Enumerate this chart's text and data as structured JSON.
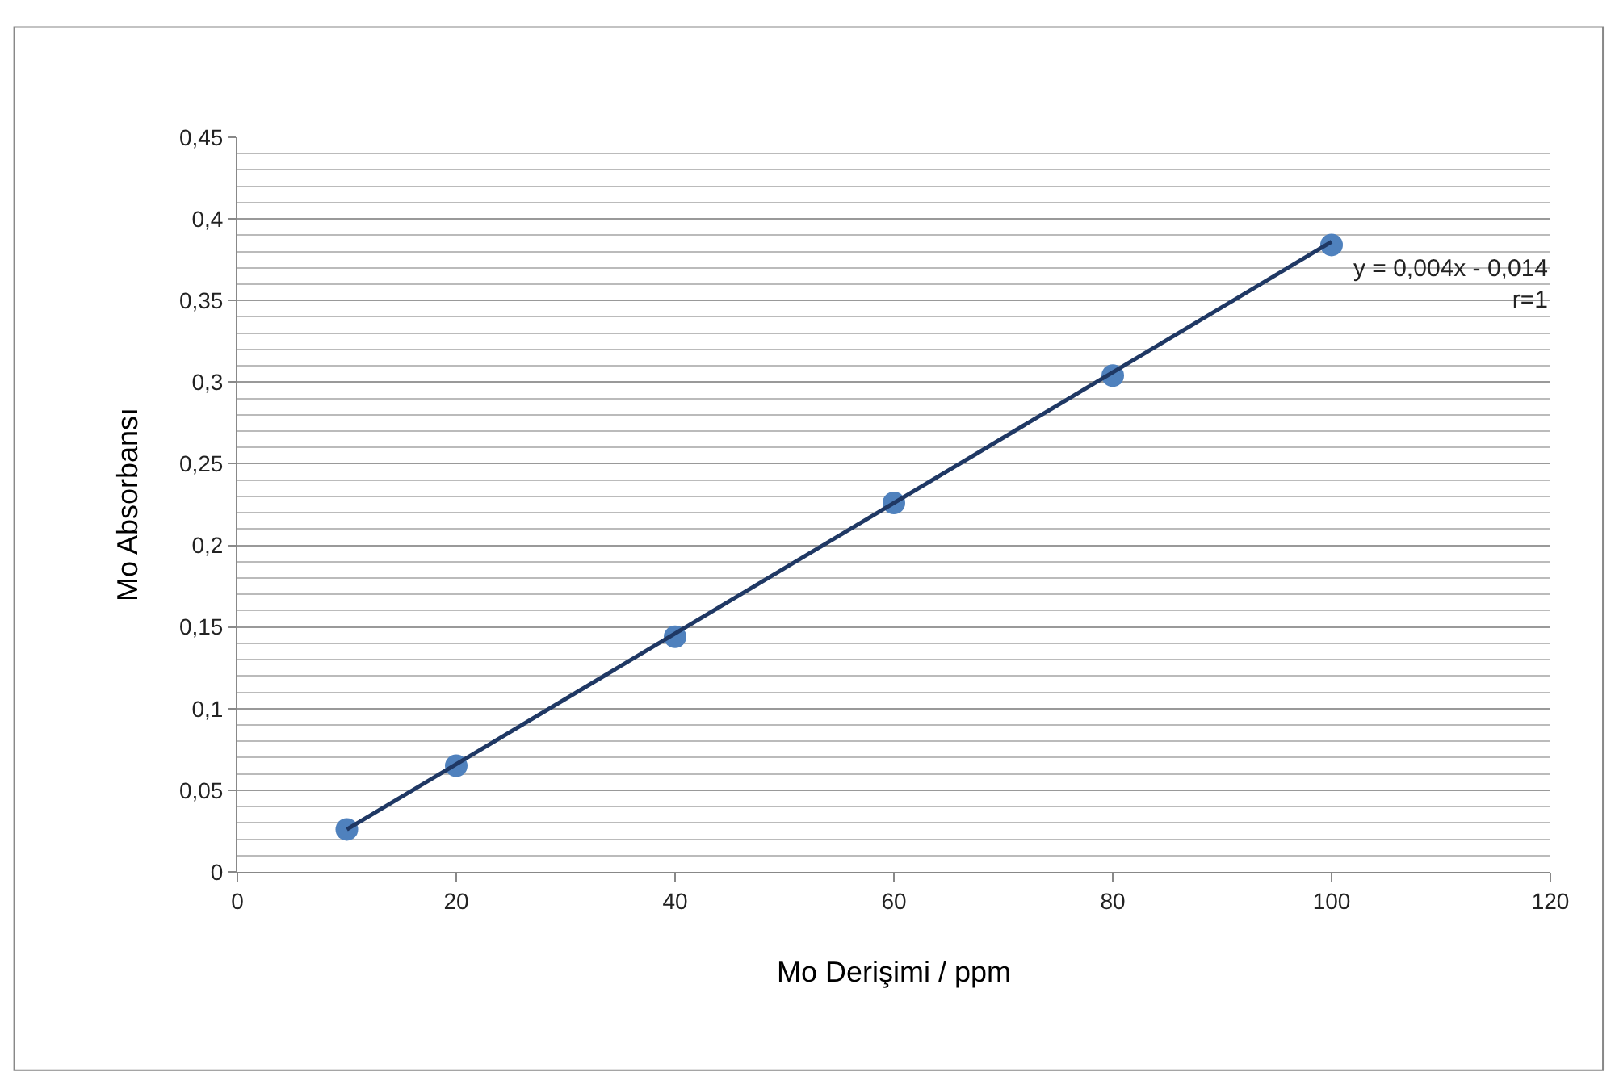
{
  "chart_data": {
    "type": "scatter",
    "xlabel": "Mo Derişimi / ppm",
    "ylabel": "Mo Absorbansı",
    "x": [
      10,
      20,
      40,
      60,
      80,
      100
    ],
    "series": [
      {
        "color": "#4f81bd",
        "marker": "circle",
        "values": [
          0.026,
          0.065,
          0.144,
          0.226,
          0.304,
          0.384
        ]
      },
      {
        "type": "line",
        "color": "#1f3864",
        "marker": "none",
        "x": [
          10,
          100
        ],
        "values": [
          0.026,
          0.386
        ]
      }
    ],
    "xlim": [
      0,
      120
    ],
    "xticks": [
      0,
      20,
      40,
      60,
      80,
      100,
      120
    ],
    "ylim": [
      0,
      0.45
    ],
    "yticks": [
      0,
      {
        "value": 0.05,
        "label": "0,05"
      },
      {
        "value": 0.1,
        "label": "0,1"
      },
      {
        "value": 0.15,
        "label": "0,15"
      },
      {
        "value": 0.2,
        "label": "0,2"
      },
      {
        "value": 0.25,
        "label": "0,25"
      },
      {
        "value": 0.3,
        "label": "0,3"
      },
      {
        "value": 0.35,
        "label": "0,35"
      },
      {
        "value": 0.4,
        "label": "0,4"
      },
      {
        "value": 0.45,
        "label": "0,45"
      }
    ],
    "grid": "y",
    "annotations": [
      "y = 0,004x - 0,014\nr=1"
    ]
  }
}
